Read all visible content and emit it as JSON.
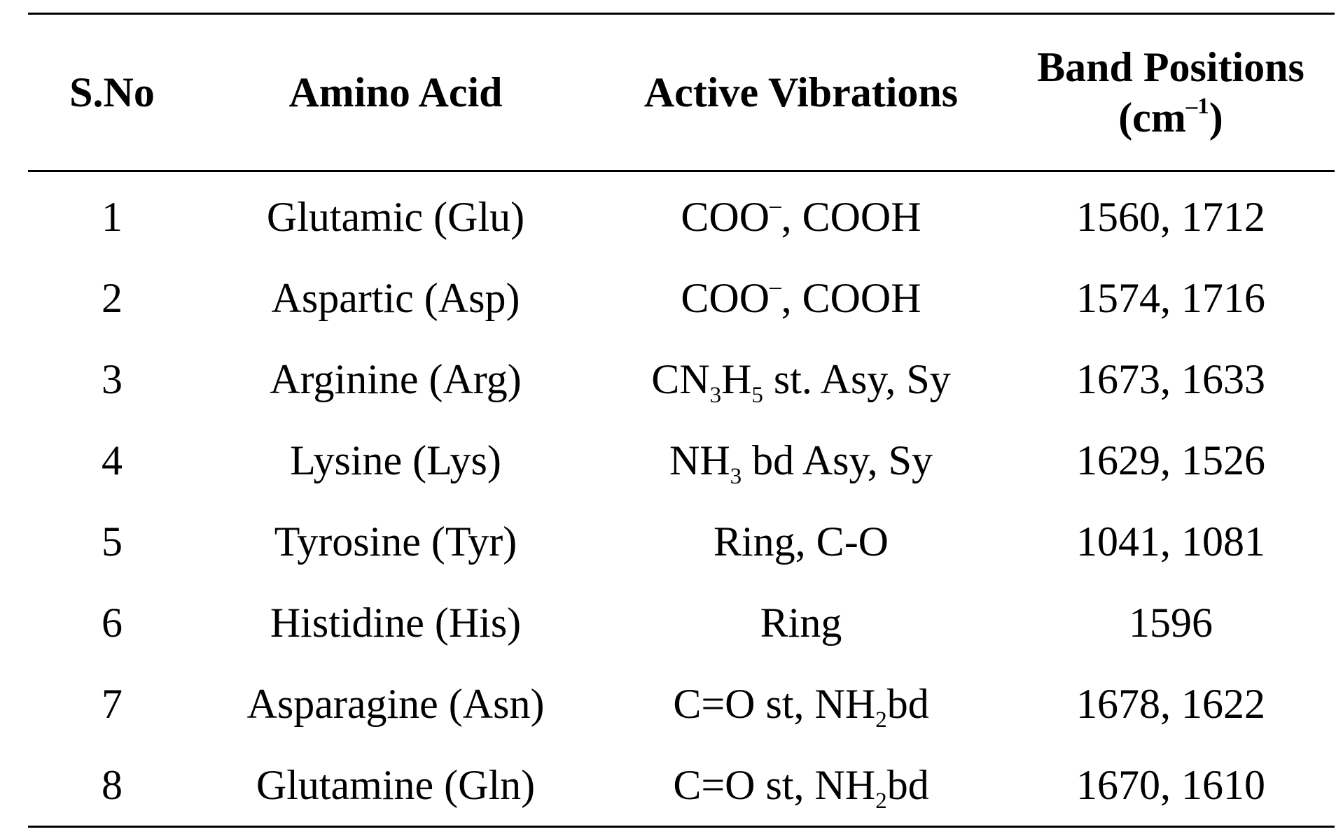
{
  "header": {
    "sno": "S.No",
    "amino_acid": "Amino Acid",
    "active_vibrations": "Active Vibrations",
    "band_line1": "Band Positions",
    "band_line2_pre": "(cm",
    "band_line2_sup": "–1",
    "band_line2_post": ")"
  },
  "rows": [
    {
      "sno": "1",
      "amino": "Glutamic (Glu)",
      "vib_a": "COO",
      "vib_a_sup": "–",
      "vib_b": ", COOH",
      "bands": "1560, 1712"
    },
    {
      "sno": "2",
      "amino": "Aspartic (Asp)",
      "vib_a": "COO",
      "vib_a_sup": "–",
      "vib_b": ", COOH",
      "bands": "1574, 1716"
    },
    {
      "sno": "3",
      "amino": "Arginine (Arg)",
      "vib_a": "CN",
      "vib_a_sub": "3",
      "vib_b": "H",
      "vib_b_sub": "5",
      "vib_c": " st. Asy, Sy",
      "bands": "1673, 1633"
    },
    {
      "sno": "4",
      "amino": "Lysine (Lys)",
      "vib_a": "NH",
      "vib_a_sub": "3",
      "vib_b": " bd Asy, Sy",
      "bands": "1629, 1526"
    },
    {
      "sno": "5",
      "amino": "Tyrosine (Tyr)",
      "vib_a": "Ring, C-O",
      "bands": "1041, 1081"
    },
    {
      "sno": "6",
      "amino": "Histidine (His)",
      "vib_a": "Ring",
      "bands": "1596"
    },
    {
      "sno": "7",
      "amino": "Asparagine (Asn)",
      "vib_a": "C=O st, NH",
      "vib_a_sub": "2",
      "vib_b": "bd",
      "bands": "1678, 1622"
    },
    {
      "sno": "8",
      "amino": "Glutamine (Gln)",
      "vib_a": "C=O st, NH",
      "vib_a_sub": "2",
      "vib_b": "bd",
      "bands": "1670, 1610"
    }
  ]
}
